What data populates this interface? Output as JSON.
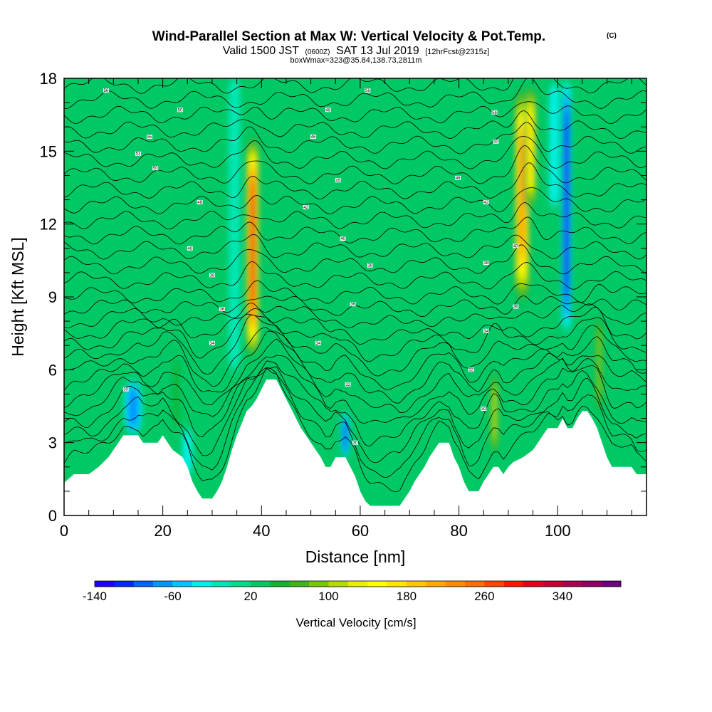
{
  "title": {
    "main": "Wind-Parallel Section at Max W: Vertical Velocity & Pot.Temp.",
    "main_mark": "(C)",
    "valid_prefix": "Valid 1500 JST",
    "valid_zulu": "(0600Z)",
    "valid_date": "SAT 13 Jul 2019",
    "valid_fcst": "[12hrFcst@2315z]",
    "box": "boxWmax=323@35.84,138.73,2811m"
  },
  "chart_data": {
    "type": "heatmap",
    "xlabel": "Distance [nm]",
    "ylabel": "Height [Kft MSL]",
    "xlim": [
      0,
      118
    ],
    "ylim": [
      0,
      18
    ],
    "x_ticks": [
      "0",
      "20",
      "40",
      "60",
      "80",
      "100"
    ],
    "y_ticks": [
      "0",
      "3",
      "6",
      "9",
      "12",
      "15",
      "18"
    ],
    "background_value": 20,
    "terrain_kft": [
      [
        0,
        1.35
      ],
      [
        2,
        1.7
      ],
      [
        5,
        1.7
      ],
      [
        7,
        2.0
      ],
      [
        9,
        2.4
      ],
      [
        10,
        2.7
      ],
      [
        11,
        3.0
      ],
      [
        12,
        3.3
      ],
      [
        15,
        3.3
      ],
      [
        16,
        3.0
      ],
      [
        19,
        3.0
      ],
      [
        20,
        3.3
      ],
      [
        21,
        3.0
      ],
      [
        22,
        2.7
      ],
      [
        24,
        2.4
      ],
      [
        25,
        2.0
      ],
      [
        26,
        1.4
      ],
      [
        27,
        1.0
      ],
      [
        28,
        0.7
      ],
      [
        30,
        0.7
      ],
      [
        31,
        1.0
      ],
      [
        32,
        1.4
      ],
      [
        33,
        2.0
      ],
      [
        34,
        2.7
      ],
      [
        35,
        3.3
      ],
      [
        36,
        3.8
      ],
      [
        37,
        4.3
      ],
      [
        38,
        4.5
      ],
      [
        39,
        4.8
      ],
      [
        40,
        5.2
      ],
      [
        41,
        5.6
      ],
      [
        43,
        5.6
      ],
      [
        44,
        5.2
      ],
      [
        45,
        4.8
      ],
      [
        46,
        4.4
      ],
      [
        47,
        4.0
      ],
      [
        48,
        3.6
      ],
      [
        49,
        3.3
      ],
      [
        50,
        3.0
      ],
      [
        51,
        2.7
      ],
      [
        52,
        2.4
      ],
      [
        53,
        2.0
      ],
      [
        54,
        2.0
      ],
      [
        55,
        2.4
      ],
      [
        57,
        2.4
      ],
      [
        58,
        2.0
      ],
      [
        59,
        1.6
      ],
      [
        60,
        1.0
      ],
      [
        61,
        0.6
      ],
      [
        62,
        0.4
      ],
      [
        64,
        0.4
      ],
      [
        65,
        0.4
      ],
      [
        68,
        0.4
      ],
      [
        69,
        0.7
      ],
      [
        70,
        1.0
      ],
      [
        71,
        1.4
      ],
      [
        72,
        1.7
      ],
      [
        73,
        2.0
      ],
      [
        74,
        2.4
      ],
      [
        75,
        2.7
      ],
      [
        76,
        3.0
      ],
      [
        78,
        3.0
      ],
      [
        79,
        2.4
      ],
      [
        80,
        2.0
      ],
      [
        81,
        1.4
      ],
      [
        82,
        1.0
      ],
      [
        84,
        1.0
      ],
      [
        85,
        1.4
      ],
      [
        86,
        1.7
      ],
      [
        87,
        2.0
      ],
      [
        88,
        2.0
      ],
      [
        89,
        1.7
      ],
      [
        90,
        2.0
      ],
      [
        91,
        2.2
      ],
      [
        93,
        2.4
      ],
      [
        95,
        2.7
      ],
      [
        96,
        3.0
      ],
      [
        97,
        3.3
      ],
      [
        98,
        3.6
      ],
      [
        100,
        3.6
      ],
      [
        101,
        4.0
      ],
      [
        102,
        3.6
      ],
      [
        103,
        3.6
      ],
      [
        104,
        4.0
      ],
      [
        105,
        4.3
      ],
      [
        106,
        4.3
      ],
      [
        107,
        4.0
      ],
      [
        108,
        3.6
      ],
      [
        109,
        3.0
      ],
      [
        110,
        2.4
      ],
      [
        111,
        2.0
      ],
      [
        115,
        2.0
      ],
      [
        116,
        1.7
      ],
      [
        118,
        1.7
      ]
    ],
    "updrafts": [
      {
        "x": 38.2,
        "y_low": 6.4,
        "y_high": 15.7,
        "half_width_nm": 1.4,
        "peak": 323
      },
      {
        "x": 92.8,
        "y_low": 8.6,
        "y_high": 17.8,
        "half_width_nm": 1.7,
        "peak": 240
      },
      {
        "x": 94.5,
        "y_low": 12.5,
        "y_high": 17.8,
        "half_width_nm": 1.4,
        "peak": 180
      },
      {
        "x": 87.2,
        "y_low": 2.4,
        "y_high": 6.0,
        "half_width_nm": 1.0,
        "peak": 110
      },
      {
        "x": 108.4,
        "y_low": 4.0,
        "y_high": 8.4,
        "half_width_nm": 1.0,
        "peak": 90
      },
      {
        "x": 22.7,
        "y_low": 3.3,
        "y_high": 6.7,
        "half_width_nm": 0.9,
        "peak": 60
      }
    ],
    "downdrafts": [
      {
        "x": 101.8,
        "y_low": 7.5,
        "y_high": 18,
        "half_width_nm": 1.0,
        "peak": -130
      },
      {
        "x": 99.3,
        "y_low": 12.5,
        "y_high": 18,
        "half_width_nm": 1.2,
        "peak": -40
      },
      {
        "x": 14.0,
        "y_low": 3.3,
        "y_high": 5.6,
        "half_width_nm": 2.0,
        "peak": -75
      },
      {
        "x": 57.0,
        "y_low": 2.4,
        "y_high": 4.2,
        "half_width_nm": 1.0,
        "peak": -90
      },
      {
        "x": 25.0,
        "y_low": 1.6,
        "y_high": 3.6,
        "half_width_nm": 1.2,
        "peak": -40
      },
      {
        "x": 34.5,
        "y_low": 6.0,
        "y_high": 18,
        "half_width_nm": 1.2,
        "peak": -20
      }
    ],
    "theta_labels": [
      {
        "x": 8.5,
        "y": 17.5,
        "text": "56"
      },
      {
        "x": 23.5,
        "y": 16.7,
        "text": "50"
      },
      {
        "x": 17.3,
        "y": 15.6,
        "text": "55"
      },
      {
        "x": 15.0,
        "y": 14.9,
        "text": "53"
      },
      {
        "x": 18.5,
        "y": 14.3,
        "text": "50"
      },
      {
        "x": 27.5,
        "y": 12.9,
        "text": "48"
      },
      {
        "x": 25.5,
        "y": 11.0,
        "text": "40"
      },
      {
        "x": 30.0,
        "y": 9.9,
        "text": "38"
      },
      {
        "x": 32.0,
        "y": 8.5,
        "text": "36"
      },
      {
        "x": 30.0,
        "y": 7.1,
        "text": "34"
      },
      {
        "x": 12.5,
        "y": 5.2,
        "text": "30"
      },
      {
        "x": 61.5,
        "y": 17.5,
        "text": "56"
      },
      {
        "x": 53.5,
        "y": 16.7,
        "text": "48"
      },
      {
        "x": 50.5,
        "y": 15.6,
        "text": "46"
      },
      {
        "x": 55.5,
        "y": 13.8,
        "text": "45"
      },
      {
        "x": 49.0,
        "y": 12.7,
        "text": "42"
      },
      {
        "x": 56.5,
        "y": 11.4,
        "text": "40"
      },
      {
        "x": 62.0,
        "y": 10.3,
        "text": "38"
      },
      {
        "x": 58.5,
        "y": 8.7,
        "text": "36"
      },
      {
        "x": 51.5,
        "y": 7.1,
        "text": "34"
      },
      {
        "x": 57.5,
        "y": 5.4,
        "text": "32"
      },
      {
        "x": 59.0,
        "y": 3.0,
        "text": "30"
      },
      {
        "x": 87.2,
        "y": 16.6,
        "text": "56"
      },
      {
        "x": 87.5,
        "y": 15.4,
        "text": "50"
      },
      {
        "x": 79.8,
        "y": 13.9,
        "text": "46"
      },
      {
        "x": 85.5,
        "y": 12.9,
        "text": "42"
      },
      {
        "x": 91.5,
        "y": 11.1,
        "text": "40"
      },
      {
        "x": 85.5,
        "y": 10.4,
        "text": "38"
      },
      {
        "x": 91.5,
        "y": 8.6,
        "text": "36"
      },
      {
        "x": 85.5,
        "y": 7.6,
        "text": "34"
      },
      {
        "x": 82.5,
        "y": 6.0,
        "text": "32"
      },
      {
        "x": 85.0,
        "y": 4.4,
        "text": "30"
      }
    ]
  },
  "colorbar": {
    "label": "Vertical Velocity [cm/s]",
    "min": -140,
    "step": 20,
    "colors": [
      "#1e00ff",
      "#0028ff",
      "#0064ff",
      "#0096ff",
      "#00c8ff",
      "#00f0e6",
      "#00e6b4",
      "#00dc8c",
      "#00c864",
      "#10b430",
      "#40b41e",
      "#78c800",
      "#b4dc00",
      "#e6f000",
      "#ffff00",
      "#ffe600",
      "#ffc800",
      "#ffaa00",
      "#ff8c00",
      "#ff6e00",
      "#ff4600",
      "#ff1400",
      "#e6001e",
      "#c80032",
      "#aa0050",
      "#8c0064",
      "#6e0080"
    ],
    "tick_labels": [
      "-140",
      "-60",
      "20",
      "100",
      "180",
      "260",
      "340"
    ],
    "tick_values": [
      -140,
      -60,
      20,
      100,
      180,
      260,
      340
    ]
  }
}
